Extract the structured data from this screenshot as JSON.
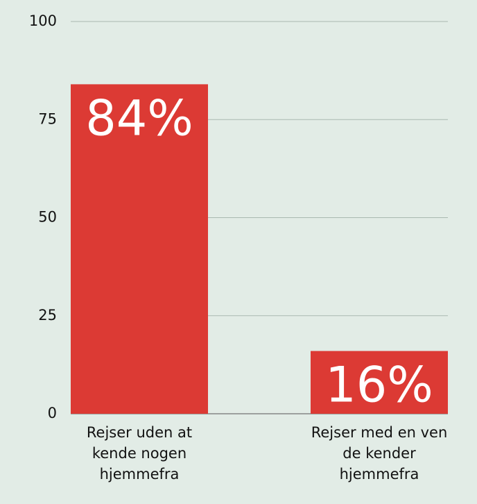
{
  "chart_data": {
    "type": "bar",
    "categories": [
      "Rejser uden at kende nogen hjemmefra",
      "Rejser med en ven de kender hjemmefra"
    ],
    "values": [
      84,
      16
    ],
    "value_labels": [
      "84%",
      "16%"
    ],
    "color": "#dc3a34",
    "ylim": [
      0,
      100
    ],
    "yticks": [
      0,
      25,
      50,
      75,
      100
    ],
    "grid": true
  }
}
